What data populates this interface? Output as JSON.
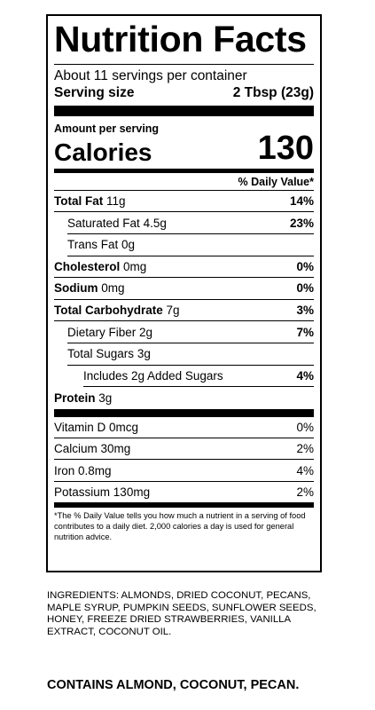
{
  "label": {
    "title": "Nutrition Facts",
    "servings_per_container": "About 11 servings per container",
    "serving_size_label": "Serving size",
    "serving_size_value": "2 Tbsp (23g)",
    "amount_per_serving": "Amount per serving",
    "calories_label": "Calories",
    "calories_value": "130",
    "daily_value_header": "% Daily Value*",
    "nutrients": [
      {
        "name": "Total Fat",
        "amount": "11g",
        "dv": "14%"
      },
      {
        "name": "Saturated Fat",
        "amount": "4.5g",
        "dv": "23%"
      },
      {
        "name": "Trans Fat",
        "amount": "0g",
        "dv": ""
      },
      {
        "name": "Cholesterol",
        "amount": "0mg",
        "dv": "0%"
      },
      {
        "name": "Sodium",
        "amount": "0mg",
        "dv": "0%"
      },
      {
        "name": "Total Carbohydrate",
        "amount": "7g",
        "dv": "3%"
      },
      {
        "name": "Dietary Fiber",
        "amount": "2g",
        "dv": "7%"
      },
      {
        "name": "Total Sugars",
        "amount": "3g",
        "dv": ""
      },
      {
        "name": "Includes 2g Added Sugars",
        "amount": "",
        "dv": "4%"
      },
      {
        "name": "Protein",
        "amount": "3g",
        "dv": ""
      }
    ],
    "vitamins": [
      {
        "name": "Vitamin D",
        "amount": "0mcg",
        "dv": "0%"
      },
      {
        "name": "Calcium",
        "amount": "30mg",
        "dv": "2%"
      },
      {
        "name": "Iron",
        "amount": "0.8mg",
        "dv": "4%"
      },
      {
        "name": "Potassium",
        "amount": "130mg",
        "dv": "2%"
      }
    ],
    "footnote": "*The % Daily Value tells you how much a nutrient in a serving of food contributes to a daily diet. 2,000 calories a day is used for general nutrition advice."
  },
  "ingredients": "INGREDIENTS: ALMONDS, DRIED COCONUT, PECANS, MAPLE SYRUP, PUMPKIN SEEDS, SUNFLOWER SEEDS, HONEY, FREEZE DRIED STRAWBERRIES, VANILLA EXTRACT, COCONUT OIL.",
  "contains": "CONTAINS ALMOND, COCONUT, PECAN."
}
